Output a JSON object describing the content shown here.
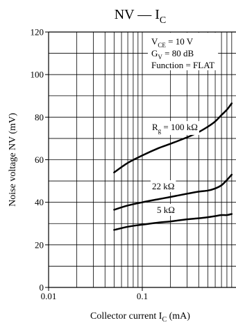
{
  "chart_data": {
    "type": "line",
    "title": {
      "main": "NV",
      "dash": "—",
      "sym": "I",
      "sub": "C"
    },
    "xlabel": {
      "text": "Collector current",
      "sym": "I",
      "sub": "C",
      "unit": "(mA)"
    },
    "ylabel": "Noise voltage  NV  (mV)",
    "x_scale": "log",
    "xlim": [
      0.01,
      0.9
    ],
    "ylim": [
      0,
      120
    ],
    "grid": true,
    "xticks": [
      {
        "value": 0.01,
        "label": "0.01"
      },
      {
        "value": 0.1,
        "label": "0.1"
      }
    ],
    "yticks": [
      0,
      20,
      40,
      60,
      80,
      100,
      120
    ],
    "conditions": [
      {
        "pre": "V",
        "sub": "CE",
        "post": " = 10 V"
      },
      {
        "pre": "G",
        "sub": "V",
        "post": " = 80 dB"
      },
      {
        "pre": "Function = FLAT",
        "sub": "",
        "post": ""
      }
    ],
    "series": [
      {
        "name": {
          "pre": "R",
          "sub": "g",
          "post": " = 100 kΩ"
        },
        "x": [
          0.05,
          0.07,
          0.1,
          0.15,
          0.2,
          0.3,
          0.4,
          0.5,
          0.6,
          0.7,
          0.8,
          0.9
        ],
        "y": [
          54,
          58.5,
          62,
          65.5,
          67.5,
          70.5,
          73,
          75.5,
          78,
          81,
          83.5,
          86.5
        ]
      },
      {
        "name": {
          "pre": "",
          "sub": "",
          "post": "22 kΩ"
        },
        "x": [
          0.05,
          0.07,
          0.1,
          0.15,
          0.2,
          0.3,
          0.4,
          0.5,
          0.6,
          0.7,
          0.8,
          0.9
        ],
        "y": [
          36.5,
          38.5,
          40,
          41.5,
          42.5,
          44,
          45,
          45.5,
          46.5,
          48,
          50.5,
          53
        ]
      },
      {
        "name": {
          "pre": "",
          "sub": "",
          "post": "5 kΩ"
        },
        "x": [
          0.05,
          0.07,
          0.1,
          0.15,
          0.2,
          0.3,
          0.4,
          0.5,
          0.6,
          0.7,
          0.8,
          0.9
        ],
        "y": [
          27,
          28.5,
          29.5,
          30.5,
          31,
          32,
          32.5,
          33,
          33.5,
          34,
          34,
          34.5
        ]
      }
    ]
  }
}
